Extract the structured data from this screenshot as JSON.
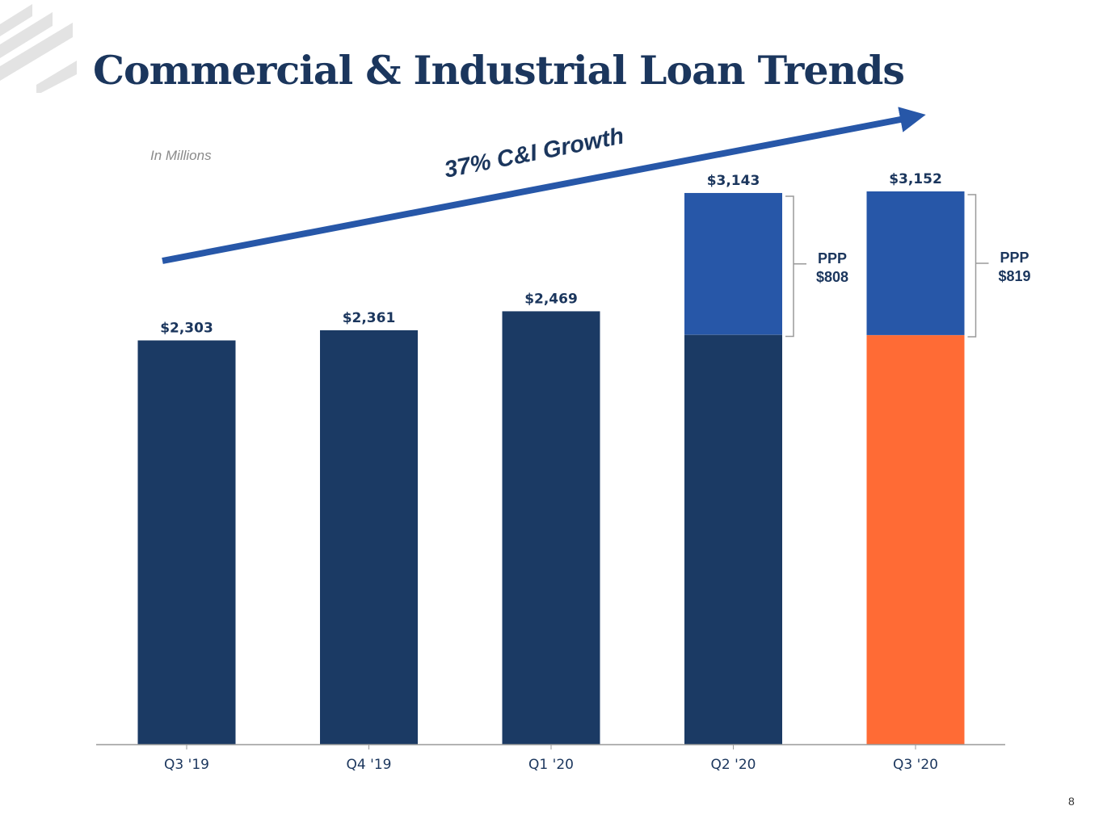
{
  "slide": {
    "title": "Commercial & Industrial Loan Trends",
    "unit_note": "In Millions",
    "page_number": "8",
    "logo_icon": "diagonal-stripes-logo-icon"
  },
  "colors": {
    "core": "#1b3a64",
    "ppp": "#2757a8",
    "highlight": "#ff6b35",
    "arrow": "#2757a8",
    "title": "#1b365d",
    "logo": "#e3e3e3"
  },
  "chart_data": {
    "type": "bar",
    "stacked": true,
    "categories": [
      "Q3 '19",
      "Q4 '19",
      "Q1 '20",
      "Q2 '20",
      "Q3 '20"
    ],
    "series": [
      {
        "values": [
          2303,
          2361,
          2469,
          2335,
          2333
        ]
      },
      {
        "name": "PPP",
        "values": [
          0,
          0,
          0,
          808,
          819
        ]
      }
    ],
    "totals": [
      2303,
      2361,
      2469,
      3143,
      3152
    ],
    "total_labels": [
      "$2,303",
      "$2,361",
      "$2,469",
      "$3,143",
      "$3,152"
    ],
    "ppp_annotations": [
      {
        "category": "Q2 '20",
        "label": "PPP",
        "value_label": "$808"
      },
      {
        "category": "Q3 '20",
        "label": "PPP",
        "value_label": "$819"
      }
    ],
    "highlight_category": "Q3 '20",
    "annotation": "37% C&I Growth",
    "ylim": [
      0,
      3152
    ],
    "grid": false,
    "legend": "none"
  }
}
